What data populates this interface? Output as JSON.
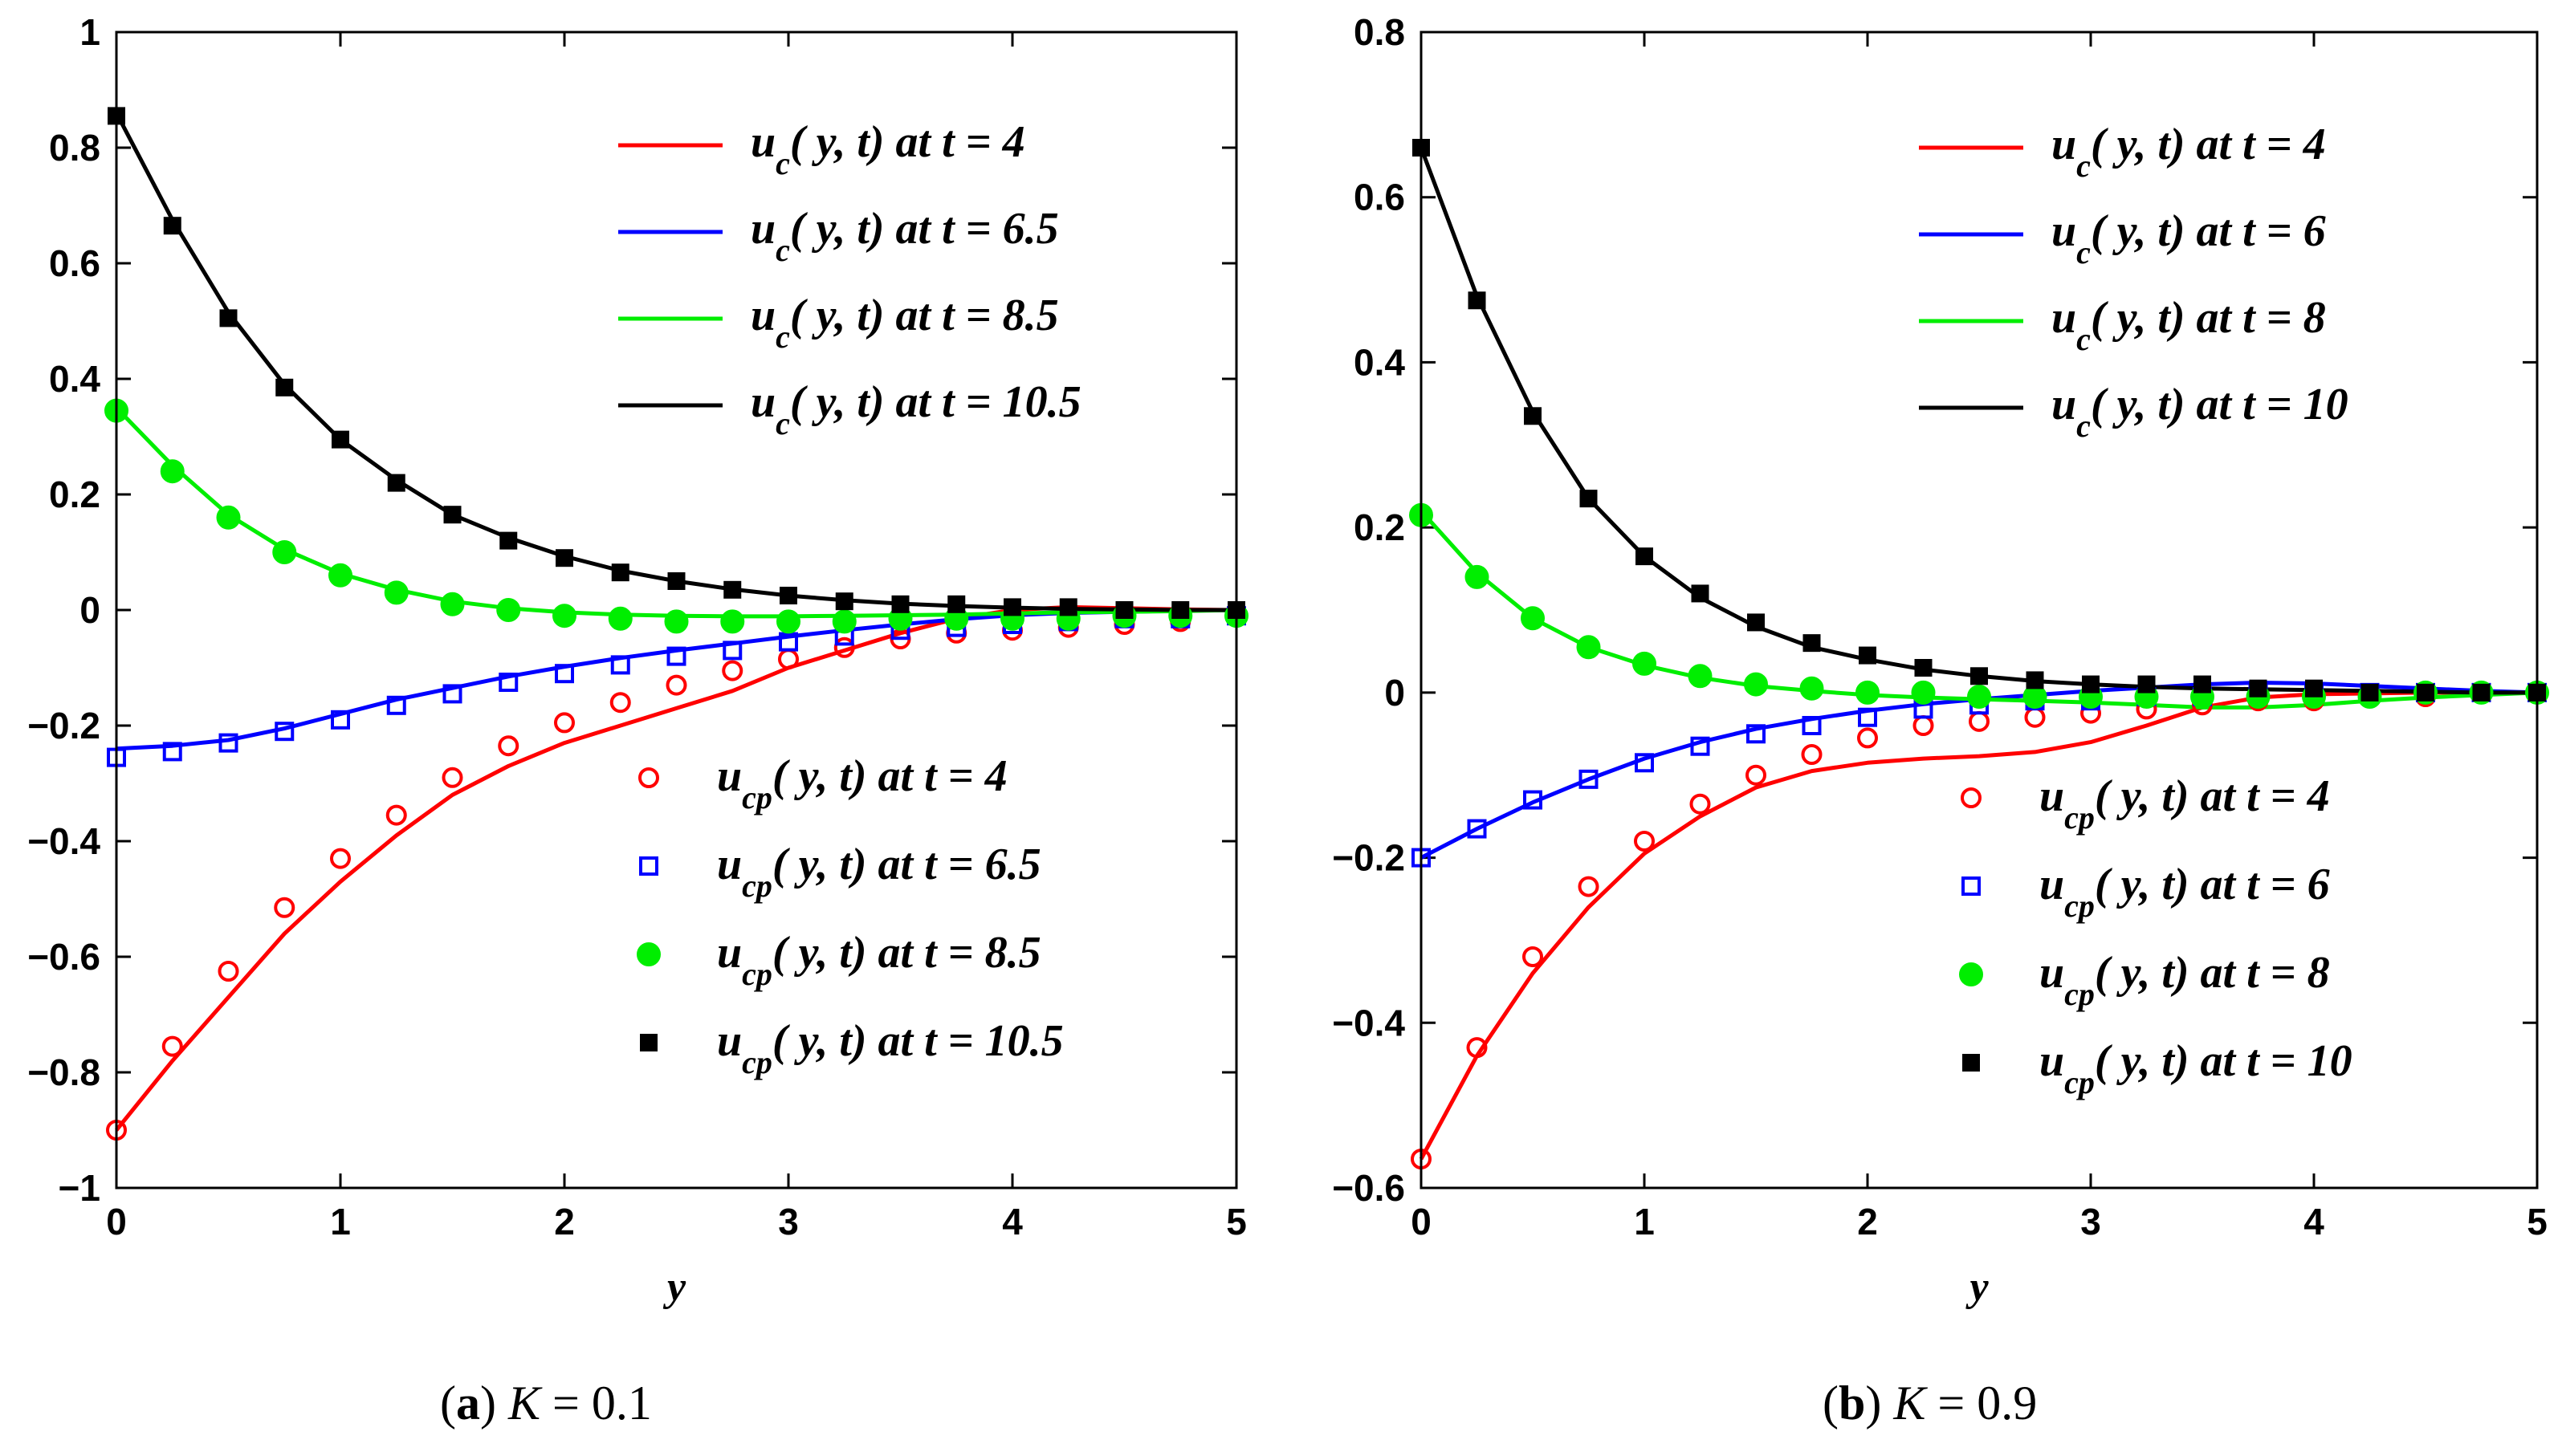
{
  "chart_data": [
    {
      "type": "line",
      "panel": "a",
      "caption_label": "(a)",
      "caption_param": "K",
      "caption_eq": " = 0.1",
      "xlabel": "y",
      "ylabel": "",
      "xlim": [
        0,
        5
      ],
      "ylim": [
        -1,
        1
      ],
      "xticks": [
        0,
        1,
        2,
        3,
        4,
        5
      ],
      "yticks": [
        -1,
        -0.8,
        -0.6,
        -0.4,
        -0.2,
        0,
        0.2,
        0.4,
        0.6,
        0.8,
        1
      ],
      "ytick_labels": [
        "−1",
        "−0.8",
        "−0.6",
        "−0.4",
        "−0.2",
        "0",
        "0.2",
        "0.4",
        "0.6",
        "0.8",
        "1"
      ],
      "line_legend_position": "top-right",
      "marker_legend_position": "bottom-right",
      "lines": [
        {
          "name": "u_c(y, t) at t = 4",
          "color": "#ff0000",
          "x": [
            0,
            0.25,
            0.5,
            0.75,
            1,
            1.25,
            1.5,
            1.75,
            2,
            2.25,
            2.5,
            2.75,
            3,
            3.25,
            3.5,
            3.75,
            4,
            4.25,
            4.5,
            4.75,
            5
          ],
          "y": [
            -0.9,
            -0.78,
            -0.67,
            -0.56,
            -0.47,
            -0.39,
            -0.32,
            -0.27,
            -0.23,
            -0.2,
            -0.17,
            -0.14,
            -0.1,
            -0.07,
            -0.04,
            -0.015,
            0,
            0.005,
            0.003,
            0.001,
            0
          ]
        },
        {
          "name": "u_c(y, t) at t = 6.5",
          "color": "#0000ff",
          "x": [
            0,
            0.25,
            0.5,
            0.75,
            1,
            1.25,
            1.5,
            1.75,
            2,
            2.25,
            2.5,
            2.75,
            3,
            3.25,
            3.5,
            3.75,
            4,
            4.25,
            4.5,
            4.75,
            5
          ],
          "y": [
            -0.24,
            -0.235,
            -0.225,
            -0.205,
            -0.18,
            -0.155,
            -0.135,
            -0.115,
            -0.098,
            -0.083,
            -0.07,
            -0.058,
            -0.046,
            -0.035,
            -0.025,
            -0.016,
            -0.009,
            -0.005,
            -0.003,
            -0.001,
            0
          ]
        },
        {
          "name": "u_c(y, t) at t = 8.5",
          "color": "#00ee00",
          "x": [
            0,
            0.25,
            0.5,
            0.75,
            1,
            1.25,
            1.5,
            1.75,
            2,
            2.25,
            2.5,
            2.75,
            3,
            3.25,
            3.5,
            3.75,
            4,
            4.25,
            4.5,
            4.75,
            5
          ],
          "y": [
            0.35,
            0.25,
            0.165,
            0.105,
            0.063,
            0.035,
            0.015,
            0.003,
            -0.004,
            -0.008,
            -0.01,
            -0.011,
            -0.011,
            -0.01,
            -0.009,
            -0.008,
            -0.006,
            -0.004,
            -0.003,
            -0.002,
            0
          ]
        },
        {
          "name": "u_c(y, t) at t = 10.5",
          "color": "#000000",
          "x": [
            0,
            0.25,
            0.5,
            0.75,
            1,
            1.25,
            1.5,
            1.75,
            2,
            2.25,
            2.5,
            2.75,
            3,
            3.25,
            3.5,
            3.75,
            4,
            4.25,
            4.5,
            4.75,
            5
          ],
          "y": [
            0.86,
            0.675,
            0.515,
            0.39,
            0.295,
            0.225,
            0.165,
            0.125,
            0.093,
            0.068,
            0.05,
            0.036,
            0.025,
            0.017,
            0.011,
            0.007,
            0.004,
            0.002,
            0.001,
            0,
            0
          ]
        }
      ],
      "markers": [
        {
          "name": "u_cp(y, t) at t = 4",
          "color": "#ff0000",
          "shape": "circle-open",
          "x": [
            0,
            0.25,
            0.5,
            0.75,
            1,
            1.25,
            1.5,
            1.75,
            2,
            2.25,
            2.5,
            2.75,
            3,
            3.25,
            3.5,
            3.75,
            4,
            4.25,
            4.5,
            4.75,
            5
          ],
          "y": [
            -0.9,
            -0.755,
            -0.625,
            -0.515,
            -0.43,
            -0.355,
            -0.29,
            -0.235,
            -0.195,
            -0.16,
            -0.13,
            -0.105,
            -0.085,
            -0.065,
            -0.05,
            -0.04,
            -0.035,
            -0.03,
            -0.025,
            -0.02,
            -0.01
          ]
        },
        {
          "name": "u_cp(y, t) at t = 6.5",
          "color": "#0000ff",
          "shape": "square-open",
          "x": [
            0,
            0.25,
            0.5,
            0.75,
            1,
            1.25,
            1.5,
            1.75,
            2,
            2.25,
            2.5,
            2.75,
            3,
            3.25,
            3.5,
            3.75,
            4,
            4.25,
            4.5,
            4.75,
            5
          ],
          "y": [
            -0.255,
            -0.245,
            -0.23,
            -0.21,
            -0.19,
            -0.165,
            -0.145,
            -0.125,
            -0.11,
            -0.095,
            -0.08,
            -0.07,
            -0.055,
            -0.045,
            -0.035,
            -0.03,
            -0.025,
            -0.02,
            -0.015,
            -0.015,
            -0.01
          ]
        },
        {
          "name": "u_cp(y, t) at t = 8.5",
          "color": "#00ee00",
          "shape": "circle-filled",
          "x": [
            0,
            0.25,
            0.5,
            0.75,
            1,
            1.25,
            1.5,
            1.75,
            2,
            2.25,
            2.5,
            2.75,
            3,
            3.25,
            3.5,
            3.75,
            4,
            4.25,
            4.5,
            4.75,
            5
          ],
          "y": [
            0.345,
            0.24,
            0.16,
            0.1,
            0.06,
            0.03,
            0.01,
            0,
            -0.01,
            -0.015,
            -0.02,
            -0.02,
            -0.02,
            -0.02,
            -0.015,
            -0.015,
            -0.015,
            -0.015,
            -0.01,
            -0.01,
            -0.01
          ]
        },
        {
          "name": "u_cp(y, t) at t = 10.5",
          "color": "#000000",
          "shape": "square-filled",
          "x": [
            0,
            0.25,
            0.5,
            0.75,
            1,
            1.25,
            1.5,
            1.75,
            2,
            2.25,
            2.5,
            2.75,
            3,
            3.25,
            3.5,
            3.75,
            4,
            4.25,
            4.5,
            4.75,
            5
          ],
          "y": [
            0.855,
            0.665,
            0.505,
            0.385,
            0.295,
            0.22,
            0.165,
            0.12,
            0.09,
            0.065,
            0.05,
            0.035,
            0.025,
            0.015,
            0.01,
            0.01,
            0.005,
            0.005,
            0,
            0,
            0
          ]
        }
      ]
    },
    {
      "type": "line",
      "panel": "b",
      "caption_label": "(b)",
      "caption_param": "K",
      "caption_eq": " = 0.9",
      "xlabel": "y",
      "ylabel": "",
      "xlim": [
        0,
        5
      ],
      "ylim": [
        -0.6,
        0.8
      ],
      "xticks": [
        0,
        1,
        2,
        3,
        4,
        5
      ],
      "yticks": [
        -0.6,
        -0.4,
        -0.2,
        0,
        0.2,
        0.4,
        0.6,
        0.8
      ],
      "ytick_labels": [
        "−0.6",
        "−0.4",
        "−0.2",
        "0",
        "0.2",
        "0.4",
        "0.6",
        "0.8"
      ],
      "line_legend_position": "top-right",
      "marker_legend_position": "bottom-right",
      "lines": [
        {
          "name": "u_c(y, t) at t = 4",
          "color": "#ff0000",
          "x": [
            0,
            0.25,
            0.5,
            0.75,
            1,
            1.25,
            1.5,
            1.75,
            2,
            2.25,
            2.5,
            2.75,
            3,
            3.25,
            3.5,
            3.75,
            4,
            4.25,
            4.5,
            4.75,
            5
          ],
          "y": [
            -0.565,
            -0.44,
            -0.34,
            -0.26,
            -0.195,
            -0.15,
            -0.115,
            -0.095,
            -0.085,
            -0.08,
            -0.077,
            -0.072,
            -0.06,
            -0.04,
            -0.018,
            -0.006,
            -0.002,
            -0.001,
            0,
            0,
            0
          ]
        },
        {
          "name": "u_c(y, t) at t = 6",
          "color": "#0000ff",
          "x": [
            0,
            0.25,
            0.5,
            0.75,
            1,
            1.25,
            1.5,
            1.75,
            2,
            2.25,
            2.5,
            2.75,
            3,
            3.25,
            3.5,
            3.75,
            4,
            4.25,
            4.5,
            4.75,
            5
          ],
          "y": [
            -0.2,
            -0.165,
            -0.133,
            -0.105,
            -0.08,
            -0.06,
            -0.044,
            -0.032,
            -0.022,
            -0.014,
            -0.008,
            -0.003,
            0.002,
            0.006,
            0.01,
            0.012,
            0.011,
            0.008,
            0.005,
            0.002,
            0
          ]
        },
        {
          "name": "u_c(y, t) at t = 8",
          "color": "#00ee00",
          "x": [
            0,
            0.25,
            0.5,
            0.75,
            1,
            1.25,
            1.5,
            1.75,
            2,
            2.25,
            2.5,
            2.75,
            3,
            3.25,
            3.5,
            3.75,
            4,
            4.25,
            4.5,
            4.75,
            5
          ],
          "y": [
            0.22,
            0.145,
            0.09,
            0.055,
            0.033,
            0.018,
            0.008,
            0.002,
            -0.003,
            -0.006,
            -0.008,
            -0.01,
            -0.012,
            -0.015,
            -0.018,
            -0.018,
            -0.015,
            -0.01,
            -0.006,
            -0.003,
            0
          ]
        },
        {
          "name": "u_c(y, t) at t = 10",
          "color": "#000000",
          "x": [
            0,
            0.25,
            0.5,
            0.75,
            1,
            1.25,
            1.5,
            1.75,
            2,
            2.25,
            2.5,
            2.75,
            3,
            3.25,
            3.5,
            3.75,
            4,
            4.25,
            4.5,
            4.75,
            5
          ],
          "y": [
            0.66,
            0.48,
            0.34,
            0.235,
            0.165,
            0.115,
            0.08,
            0.055,
            0.04,
            0.028,
            0.02,
            0.014,
            0.01,
            0.007,
            0.005,
            0.004,
            0.003,
            0.002,
            0.001,
            0,
            0
          ]
        }
      ],
      "markers": [
        {
          "name": "u_cp(y, t) at t = 4",
          "color": "#ff0000",
          "shape": "circle-open",
          "x": [
            0,
            0.25,
            0.5,
            0.75,
            1,
            1.25,
            1.5,
            1.75,
            2,
            2.25,
            2.5,
            2.75,
            3,
            3.25,
            3.5,
            3.75,
            4,
            4.25,
            4.5,
            4.75,
            5
          ],
          "y": [
            -0.565,
            -0.43,
            -0.32,
            -0.235,
            -0.18,
            -0.135,
            -0.1,
            -0.075,
            -0.055,
            -0.04,
            -0.035,
            -0.03,
            -0.025,
            -0.02,
            -0.015,
            -0.01,
            -0.01,
            -0.005,
            -0.005,
            0,
            0
          ]
        },
        {
          "name": "u_cp(y, t) at t = 6",
          "color": "#0000ff",
          "shape": "square-open",
          "x": [
            0,
            0.25,
            0.5,
            0.75,
            1,
            1.25,
            1.5,
            1.75,
            2,
            2.25,
            2.5,
            2.75,
            3,
            3.25,
            3.5,
            3.75,
            4,
            4.25,
            4.5,
            4.75,
            5
          ],
          "y": [
            -0.2,
            -0.165,
            -0.13,
            -0.105,
            -0.085,
            -0.065,
            -0.05,
            -0.04,
            -0.03,
            -0.02,
            -0.015,
            -0.01,
            -0.01,
            -0.005,
            -0.005,
            0,
            0,
            0,
            0,
            0,
            0
          ]
        },
        {
          "name": "u_cp(y, t) at t = 8",
          "color": "#00ee00",
          "shape": "circle-filled",
          "x": [
            0,
            0.25,
            0.5,
            0.75,
            1,
            1.25,
            1.5,
            1.75,
            2,
            2.25,
            2.5,
            2.75,
            3,
            3.25,
            3.5,
            3.75,
            4,
            4.25,
            4.5,
            4.75,
            5
          ],
          "y": [
            0.215,
            0.14,
            0.09,
            0.055,
            0.035,
            0.02,
            0.01,
            0.005,
            0,
            0,
            -0.005,
            -0.005,
            -0.005,
            -0.005,
            -0.005,
            -0.005,
            -0.005,
            -0.005,
            0,
            0,
            0
          ]
        },
        {
          "name": "u_cp(y, t) at t = 10",
          "color": "#000000",
          "shape": "square-filled",
          "x": [
            0,
            0.25,
            0.5,
            0.75,
            1,
            1.25,
            1.5,
            1.75,
            2,
            2.25,
            2.5,
            2.75,
            3,
            3.25,
            3.5,
            3.75,
            4,
            4.25,
            4.5,
            4.75,
            5
          ],
          "y": [
            0.66,
            0.475,
            0.335,
            0.235,
            0.165,
            0.12,
            0.085,
            0.06,
            0.045,
            0.03,
            0.02,
            0.015,
            0.01,
            0.01,
            0.01,
            0.005,
            0.005,
            0,
            0,
            0,
            0
          ]
        }
      ]
    }
  ]
}
